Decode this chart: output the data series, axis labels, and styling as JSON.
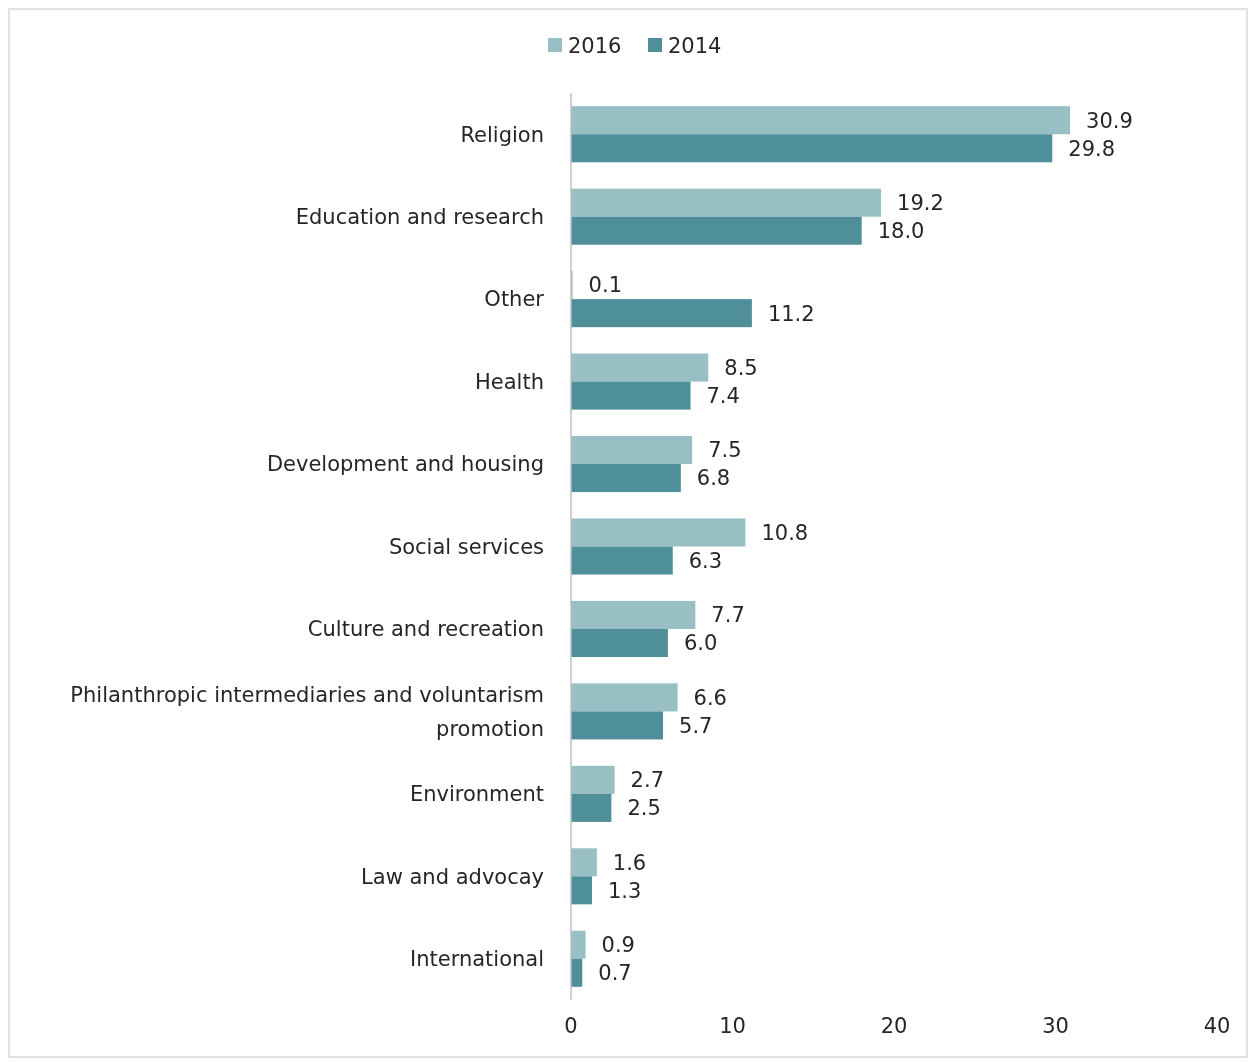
{
  "chart_data": {
    "type": "bar",
    "orientation": "horizontal",
    "categories": [
      "Religion",
      "Education and research",
      "Other",
      "Health",
      "Development and housing",
      "Social services",
      "Culture and recreation",
      "Philanthropic intermediaries and voluntarism promotion",
      "Environment",
      "Law and advocay",
      "International"
    ],
    "series": [
      {
        "name": "2016",
        "color": "#97bfc4",
        "values": [
          30.9,
          19.2,
          0.1,
          8.5,
          7.5,
          10.8,
          7.7,
          6.6,
          2.7,
          1.6,
          0.9
        ],
        "value_labels": [
          "30.9",
          "19.2",
          "0.1",
          "8.5",
          "7.5",
          "10.8",
          "7.7",
          "6.6",
          "2.7",
          "1.6",
          "0.9"
        ]
      },
      {
        "name": "2014",
        "color": "#4e8f99",
        "values": [
          29.8,
          18.0,
          11.2,
          7.4,
          6.8,
          6.3,
          6.0,
          5.7,
          2.5,
          1.3,
          0.7
        ],
        "value_labels": [
          "29.8",
          "18.0",
          "11.2",
          "7.4",
          "6.8",
          "6.3",
          "6.0",
          "5.7",
          "2.5",
          "1.3",
          "0.7"
        ]
      }
    ],
    "xlim": [
      0,
      40
    ],
    "xticks": [
      0,
      10,
      20,
      30,
      40
    ],
    "legend": "top"
  }
}
